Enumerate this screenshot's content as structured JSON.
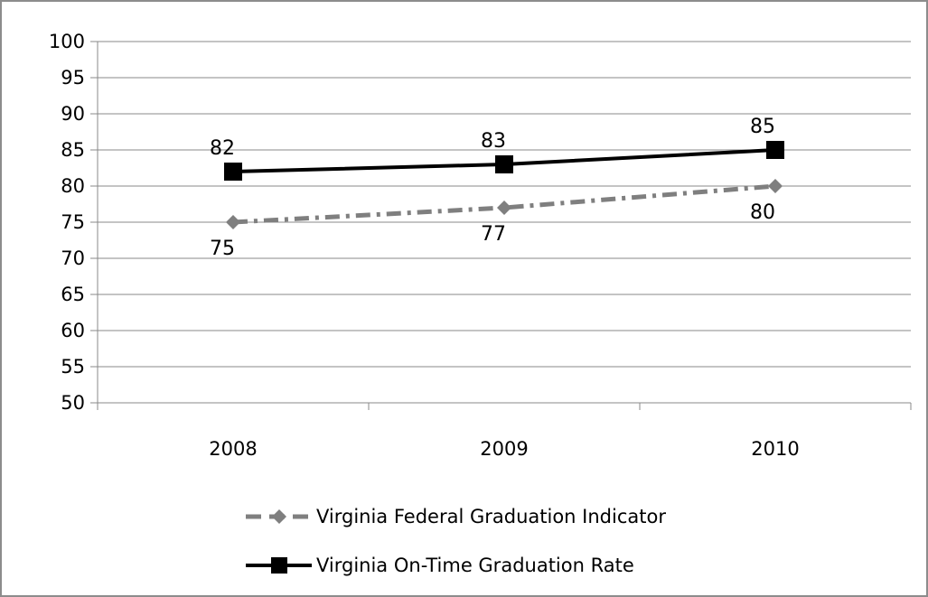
{
  "chart_data": {
    "type": "line",
    "categories": [
      "2008",
      "2009",
      "2010"
    ],
    "series": [
      {
        "name": "Virginia Federal Graduation Indicator",
        "values": [
          75,
          77,
          80
        ],
        "color": "#7f7f7f",
        "marker": "diamond",
        "line_style": "dash-dot",
        "label_position": "below"
      },
      {
        "name": "Virginia On-Time Graduation Rate",
        "values": [
          82,
          83,
          85
        ],
        "color": "#000000",
        "marker": "square",
        "line_style": "solid",
        "label_position": "above"
      }
    ],
    "ylim": [
      50,
      100
    ],
    "yticks": [
      50,
      55,
      60,
      65,
      70,
      75,
      80,
      85,
      90,
      95,
      100
    ],
    "grid": true,
    "legend": "bottom",
    "title": "",
    "xlabel": "",
    "ylabel": ""
  }
}
